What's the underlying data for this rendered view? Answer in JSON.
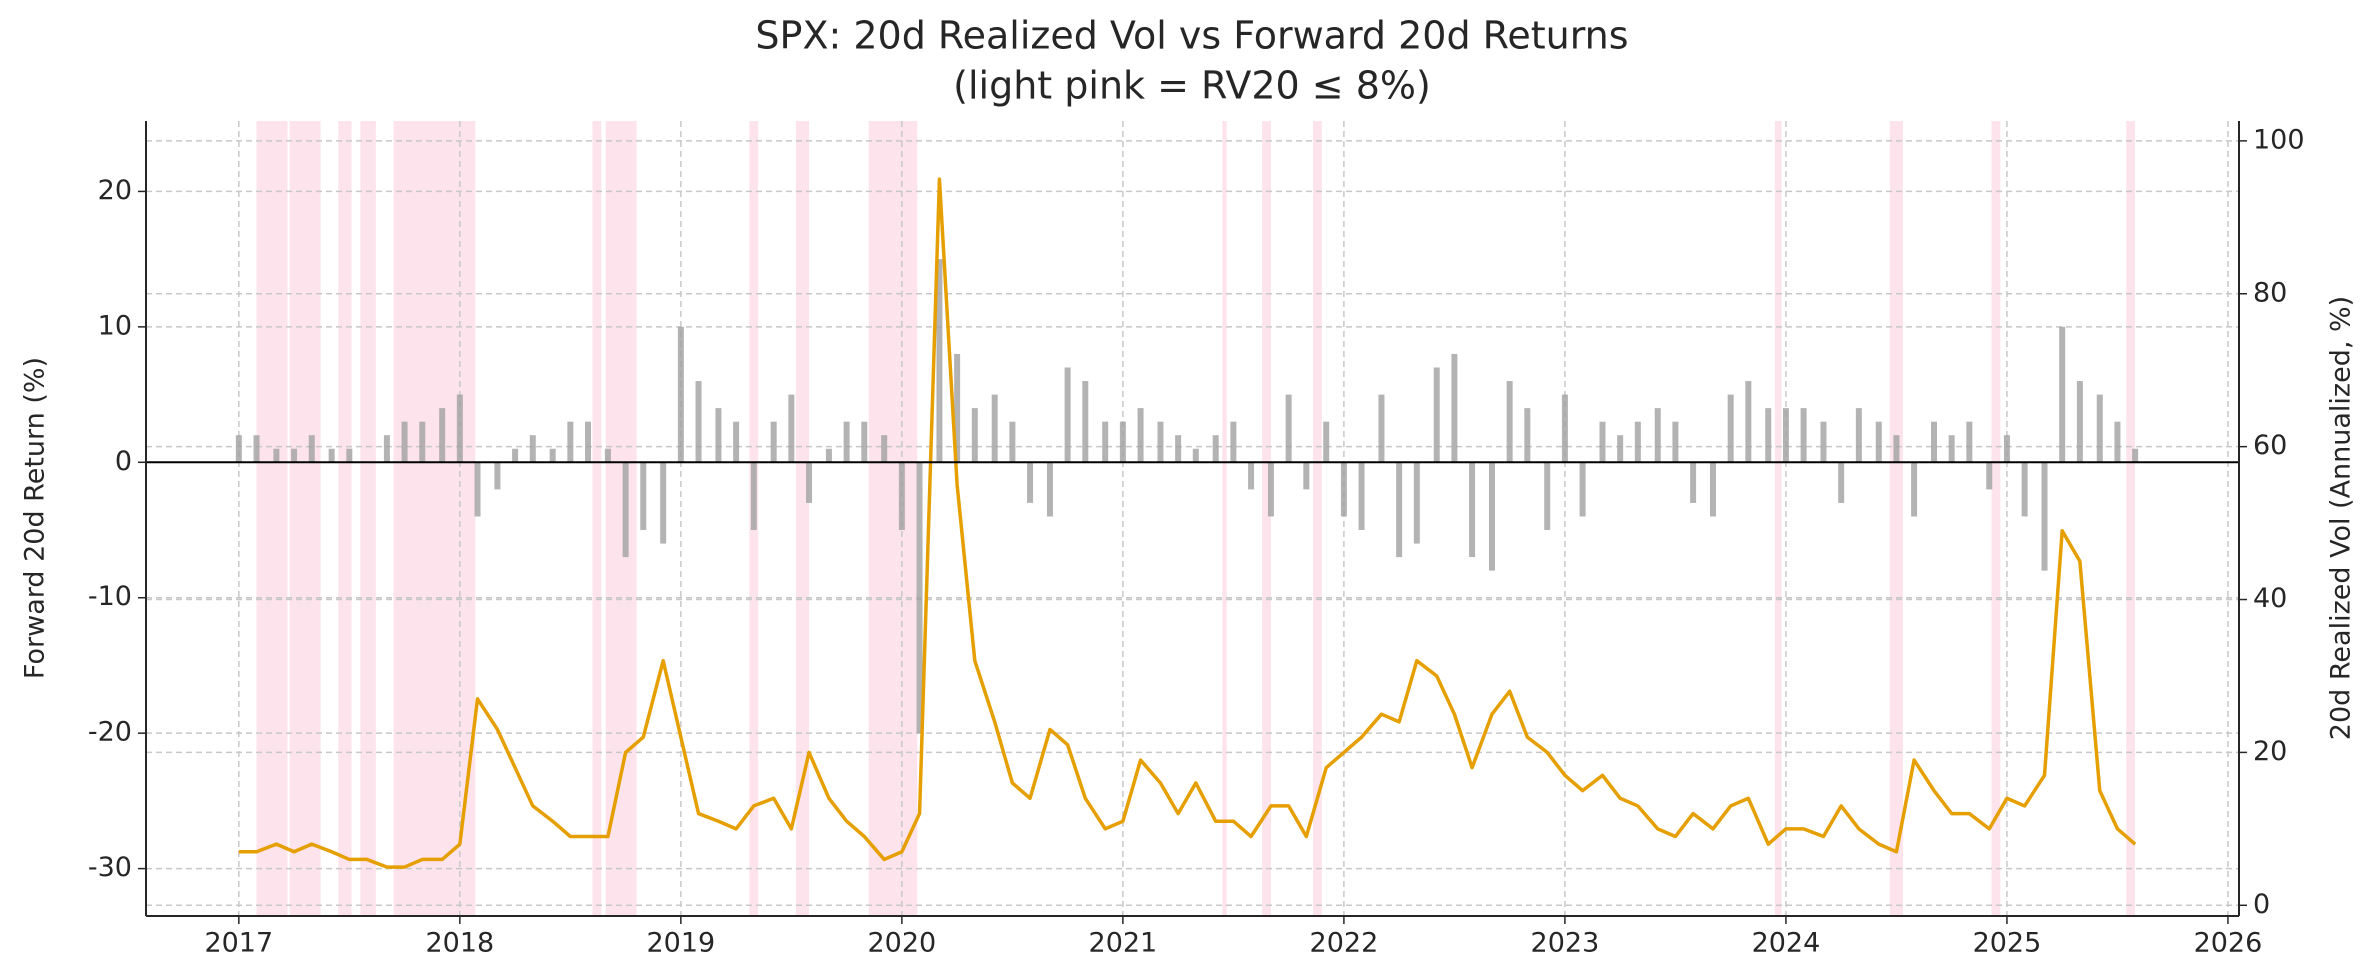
{
  "chart_data": {
    "type": "dual-axis",
    "title": "SPX: 20d Realized Vol vs Forward 20d Returns",
    "subtitle": "(light pink = RV20 ≤ 8%)",
    "ylabel": "Forward 20d Return (%)",
    "y2label": "20d Realized Vol (Annualized, %)",
    "xlim": [
      2016.58,
      2026.05
    ],
    "xticks": [
      2017,
      2018,
      2019,
      2020,
      2021,
      2022,
      2023,
      2024,
      2025,
      2026
    ],
    "ylim": [
      -33.5,
      25.2
    ],
    "yticks": [
      -30,
      -20,
      -10,
      0,
      10,
      20
    ],
    "y2lim": [
      -1.4,
      102.6
    ],
    "y2ticks": [
      0,
      20,
      40,
      60,
      80,
      100
    ],
    "grid": true,
    "hline": 0,
    "shade_color": "#fde3ec",
    "shaded_regions": [
      [
        2017.08,
        2017.22
      ],
      [
        2017.23,
        2017.37
      ],
      [
        2017.45,
        2017.51
      ],
      [
        2017.55,
        2017.62
      ],
      [
        2017.7,
        2018.07
      ],
      [
        2018.6,
        2018.64
      ],
      [
        2018.66,
        2018.8
      ],
      [
        2019.31,
        2019.35
      ],
      [
        2019.52,
        2019.58
      ],
      [
        2019.85,
        2020.07
      ],
      [
        2021.45,
        2021.47
      ],
      [
        2021.63,
        2021.67
      ],
      [
        2021.86,
        2021.9
      ],
      [
        2023.95,
        2023.98
      ],
      [
        2024.47,
        2024.53
      ],
      [
        2024.93,
        2024.97
      ],
      [
        2025.54,
        2025.58
      ]
    ],
    "x": [
      2017.0,
      2017.08,
      2017.17,
      2017.25,
      2017.33,
      2017.42,
      2017.5,
      2017.58,
      2017.67,
      2017.75,
      2017.83,
      2017.92,
      2018.0,
      2018.08,
      2018.17,
      2018.25,
      2018.33,
      2018.42,
      2018.5,
      2018.58,
      2018.67,
      2018.75,
      2018.83,
      2018.92,
      2019.0,
      2019.08,
      2019.17,
      2019.25,
      2019.33,
      2019.42,
      2019.5,
      2019.58,
      2019.67,
      2019.75,
      2019.83,
      2019.92,
      2020.0,
      2020.08,
      2020.17,
      2020.25,
      2020.33,
      2020.42,
      2020.5,
      2020.58,
      2020.67,
      2020.75,
      2020.83,
      2020.92,
      2021.0,
      2021.08,
      2021.17,
      2021.25,
      2021.33,
      2021.42,
      2021.5,
      2021.58,
      2021.67,
      2021.75,
      2021.83,
      2021.92,
      2022.0,
      2022.08,
      2022.17,
      2022.25,
      2022.33,
      2022.42,
      2022.5,
      2022.58,
      2022.67,
      2022.75,
      2022.83,
      2022.92,
      2023.0,
      2023.08,
      2023.17,
      2023.25,
      2023.33,
      2023.42,
      2023.5,
      2023.58,
      2023.67,
      2023.75,
      2023.83,
      2023.92,
      2024.0,
      2024.08,
      2024.17,
      2024.25,
      2024.33,
      2024.42,
      2024.5,
      2024.58,
      2024.67,
      2024.75,
      2024.83,
      2024.92,
      2025.0,
      2025.08,
      2025.17,
      2025.25,
      2025.33,
      2025.42,
      2025.5,
      2025.58
    ],
    "series": [
      {
        "name": "Forward 20d Return",
        "kind": "bar",
        "axis": "y",
        "color": "#a0a0a0",
        "values": [
          2,
          2,
          1,
          1,
          2,
          1,
          1,
          0,
          2,
          3,
          3,
          4,
          5,
          -4,
          -2,
          1,
          2,
          1,
          3,
          3,
          1,
          -7,
          -5,
          -6,
          10,
          6,
          4,
          3,
          -5,
          3,
          5,
          -3,
          1,
          3,
          3,
          2,
          -5,
          -20,
          15,
          8,
          4,
          5,
          3,
          -3,
          -4,
          7,
          6,
          3,
          3,
          4,
          3,
          2,
          1,
          2,
          3,
          -2,
          -4,
          5,
          -2,
          3,
          -4,
          -5,
          5,
          -7,
          -6,
          7,
          8,
          -7,
          -8,
          6,
          4,
          -5,
          5,
          -4,
          3,
          2,
          3,
          4,
          3,
          -3,
          -4,
          5,
          6,
          4,
          4,
          4,
          3,
          -3,
          4,
          3,
          2,
          -4,
          3,
          2,
          3,
          -2,
          2,
          -4,
          -8,
          10,
          6,
          5,
          3,
          1
        ]
      },
      {
        "name": "RV20",
        "kind": "line",
        "axis": "y2",
        "color": "#e69f00",
        "values": [
          7,
          7,
          8,
          7,
          8,
          7,
          6,
          6,
          5,
          5,
          6,
          6,
          8,
          27,
          23,
          18,
          13,
          11,
          9,
          9,
          9,
          20,
          22,
          32,
          22,
          12,
          11,
          10,
          13,
          14,
          10,
          20,
          14,
          11,
          9,
          6,
          7,
          12,
          95,
          55,
          32,
          24,
          16,
          14,
          23,
          21,
          14,
          10,
          11,
          19,
          16,
          12,
          16,
          11,
          11,
          9,
          13,
          13,
          9,
          18,
          20,
          22,
          25,
          24,
          32,
          30,
          25,
          18,
          25,
          28,
          22,
          20,
          17,
          15,
          17,
          14,
          13,
          10,
          9,
          12,
          10,
          13,
          14,
          8,
          10,
          10,
          9,
          13,
          10,
          8,
          7,
          19,
          15,
          12,
          12,
          10,
          14,
          13,
          17,
          49,
          45,
          15,
          10,
          8
        ]
      }
    ]
  }
}
